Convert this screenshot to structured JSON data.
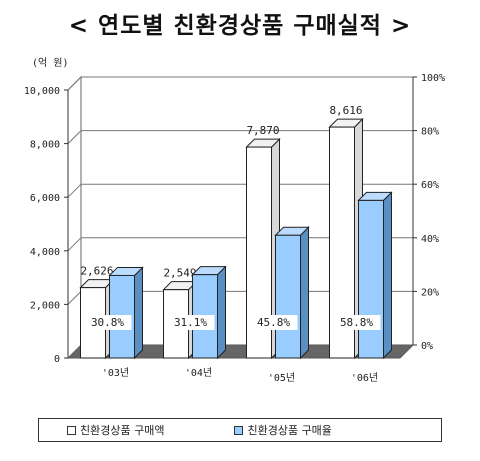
{
  "title": "< 연도별 친환경상품 구매실적 >",
  "chart_data": {
    "type": "bar",
    "title": "< 연도별 친환경상품 구매실적 >",
    "y_unit_label": "(억 원)",
    "categories": [
      "'03년",
      "'04년",
      "'05년",
      "'06년"
    ],
    "ylim": [
      0,
      10000
    ],
    "y_ticks": [
      "0",
      "2,000",
      "4,000",
      "6,000",
      "8,000",
      "10,000"
    ],
    "y2lim": [
      0,
      100
    ],
    "y2_ticks": [
      "0%",
      "20%",
      "40%",
      "60%",
      "80%",
      "100%"
    ],
    "grid": true,
    "legend_position": "bottom",
    "series": [
      {
        "name": "친환경상품 구매액",
        "axis": "left",
        "color": "#ffffff",
        "values": [
          2626,
          2549,
          7870,
          8616
        ],
        "labels": [
          "2,626",
          "2,549",
          "7,870",
          "8,616"
        ]
      },
      {
        "name": "친환경상품 구매율",
        "axis": "right",
        "color": "#99ccff",
        "values": [
          30.8,
          31.1,
          45.8,
          58.8
        ],
        "labels": [
          "30.8%",
          "31.1%",
          "45.8%",
          "58.8%"
        ]
      }
    ]
  }
}
